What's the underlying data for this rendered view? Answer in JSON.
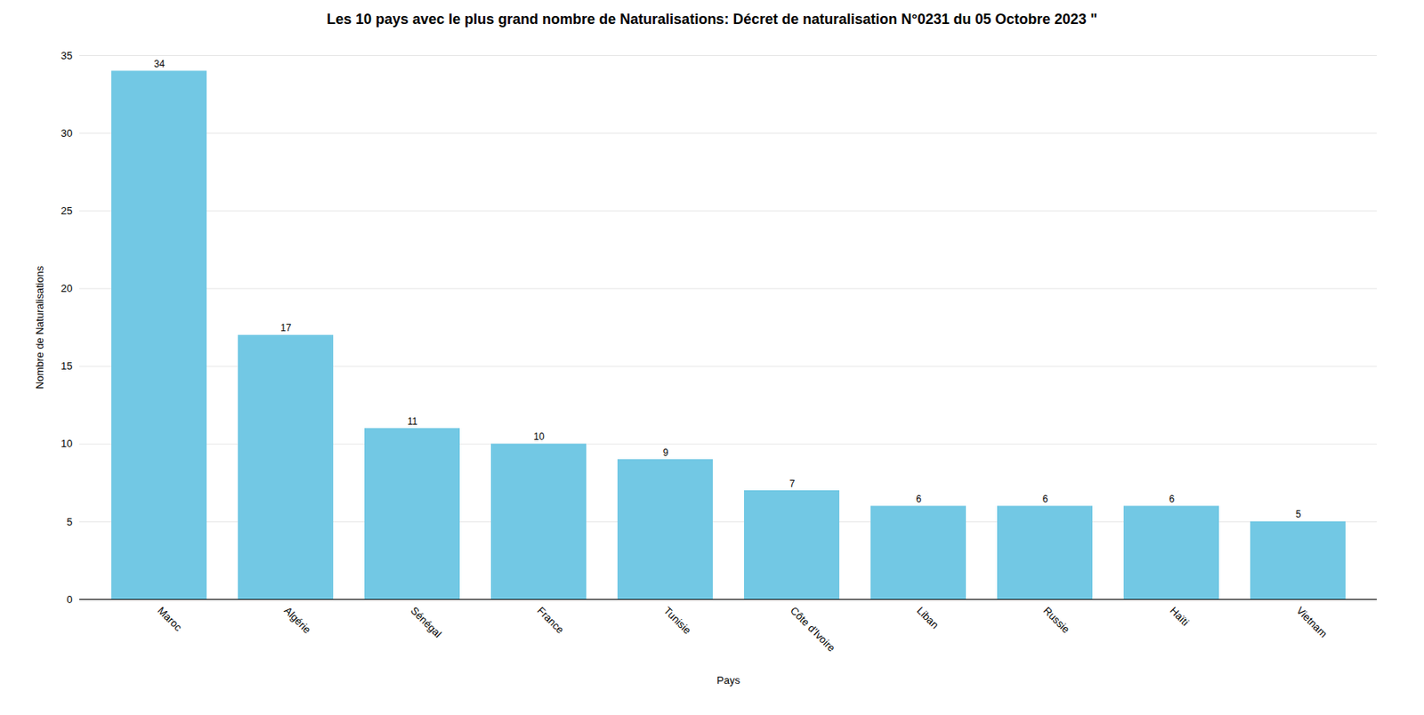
{
  "chart_data": {
    "type": "bar",
    "title": "Les 10 pays avec le plus grand nombre de Naturalisations: Décret de naturalisation N°0231 du 05 Octobre 2023 \"",
    "xlabel": "Pays",
    "ylabel": "Nombre de Naturalisations",
    "categories": [
      "Maroc",
      "Algérie",
      "Sénégal",
      "France",
      "Tunisie",
      "Côte d'Ivoire",
      "Liban",
      "Russie",
      "Haïti",
      "Vietnam"
    ],
    "values": [
      34,
      17,
      11,
      10,
      9,
      7,
      6,
      6,
      6,
      5
    ],
    "color": "#72c8e4",
    "ylim": [
      0,
      35
    ],
    "yticks": [
      0,
      5,
      10,
      15,
      20,
      25,
      30,
      35
    ],
    "grid": true,
    "data_labels": true
  }
}
